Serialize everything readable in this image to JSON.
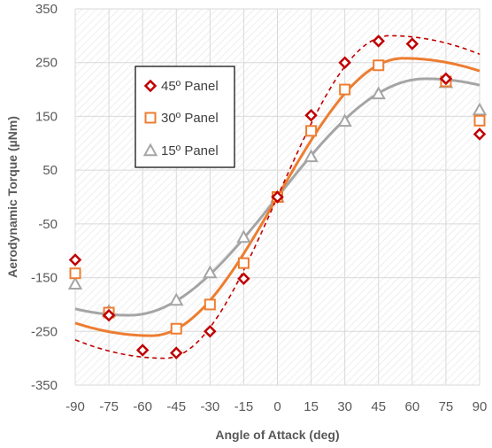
{
  "chart_data": {
    "type": "scatter",
    "title": "",
    "xlabel": "Angle of Attack (deg)",
    "ylabel": "Aerodynamic Torque (µNm)",
    "xlim": [
      -90,
      90
    ],
    "ylim": [
      -350,
      350
    ],
    "xticks": [
      -90,
      -75,
      -60,
      -45,
      -30,
      -15,
      0,
      15,
      30,
      45,
      60,
      75,
      90
    ],
    "yticks": [
      -350,
      -250,
      -150,
      -50,
      50,
      150,
      250,
      350
    ],
    "x_tick_labels": [
      "-90",
      "-75",
      "-60",
      "-45",
      "-30",
      "-15",
      "0",
      "15",
      "30",
      "45",
      "60",
      "75",
      "90"
    ],
    "y_tick_labels": [
      "-350",
      "-250",
      "-150",
      "-50",
      "50",
      "150",
      "250",
      "350"
    ],
    "grid": true,
    "legend_position": "top-left",
    "series": [
      {
        "name": "45º Panel",
        "marker": "diamond",
        "color": "#c00000",
        "trend_style": "dashed",
        "trend_amplitude": 300,
        "trend_peak_deg": 50,
        "x": [
          -90,
          -75,
          -60,
          -45,
          -30,
          -15,
          0,
          15,
          30,
          45,
          60,
          75,
          90
        ],
        "y": [
          -117,
          -220,
          -285,
          -290,
          -250,
          -152,
          0,
          152,
          250,
          290,
          285,
          220,
          117
        ]
      },
      {
        "name": "30º Panel",
        "marker": "square",
        "color": "#ed7d31",
        "trend_style": "solid",
        "trend_amplitude": 258,
        "trend_peak_deg": 56,
        "x": [
          -90,
          -75,
          -60,
          -45,
          -30,
          -15,
          0,
          15,
          30,
          45,
          60,
          75,
          90
        ],
        "y": [
          -142,
          -215,
          null,
          -245,
          -200,
          -123,
          0,
          123,
          200,
          245,
          null,
          215,
          142
        ]
      },
      {
        "name": "15º Panel",
        "marker": "triangle",
        "color": "#a5a5a5",
        "trend_style": "solid",
        "trend_amplitude": 220,
        "trend_peak_deg": 66,
        "x": [
          -90,
          -75,
          -60,
          -45,
          -30,
          -15,
          0,
          15,
          30,
          45,
          60,
          75,
          90
        ],
        "y": [
          -162,
          -213,
          null,
          -192,
          -141,
          -75,
          0,
          75,
          141,
          192,
          null,
          213,
          162
        ]
      }
    ]
  }
}
